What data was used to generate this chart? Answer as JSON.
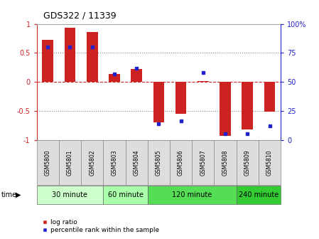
{
  "title": "GDS322 / 11339",
  "samples": [
    "GSM5800",
    "GSM5801",
    "GSM5802",
    "GSM5803",
    "GSM5804",
    "GSM5805",
    "GSM5806",
    "GSM5807",
    "GSM5808",
    "GSM5809",
    "GSM5810"
  ],
  "log_ratio": [
    0.72,
    0.93,
    0.86,
    0.13,
    0.22,
    -0.7,
    -0.55,
    0.01,
    -0.93,
    -0.82,
    -0.52
  ],
  "percentile_rank": [
    80,
    80,
    80,
    57,
    62,
    14,
    16,
    58,
    5,
    5,
    12
  ],
  "time_groups": [
    {
      "label": "30 minute",
      "start": 0,
      "end": 3,
      "color": "#ccffcc"
    },
    {
      "label": "60 minute",
      "start": 3,
      "end": 5,
      "color": "#aaffaa"
    },
    {
      "label": "120 minute",
      "start": 5,
      "end": 9,
      "color": "#55dd55"
    },
    {
      "label": "240 minute",
      "start": 9,
      "end": 11,
      "color": "#33cc33"
    }
  ],
  "bar_color": "#cc2222",
  "dot_color": "#2222cc",
  "ylim": [
    -1.0,
    1.0
  ],
  "y2lim": [
    0,
    100
  ],
  "yticks": [
    -1.0,
    -0.5,
    0.0,
    0.5,
    1.0
  ],
  "ytick_labels": [
    "-1",
    "-0.5",
    "0",
    "0.5",
    "1"
  ],
  "y2ticks": [
    0,
    25,
    50,
    75,
    100
  ],
  "y2ticklabels": [
    "0",
    "25",
    "50",
    "75",
    "100%"
  ],
  "legend_labels": [
    "log ratio",
    "percentile rank within the sample"
  ],
  "background_color": "#ffffff",
  "tick_label_color_left": "#cc2222",
  "tick_label_color_right": "#2222cc",
  "bar_width": 0.5,
  "gsm_cell_color": "#dddddd",
  "gsm_cell_edge": "#888888"
}
